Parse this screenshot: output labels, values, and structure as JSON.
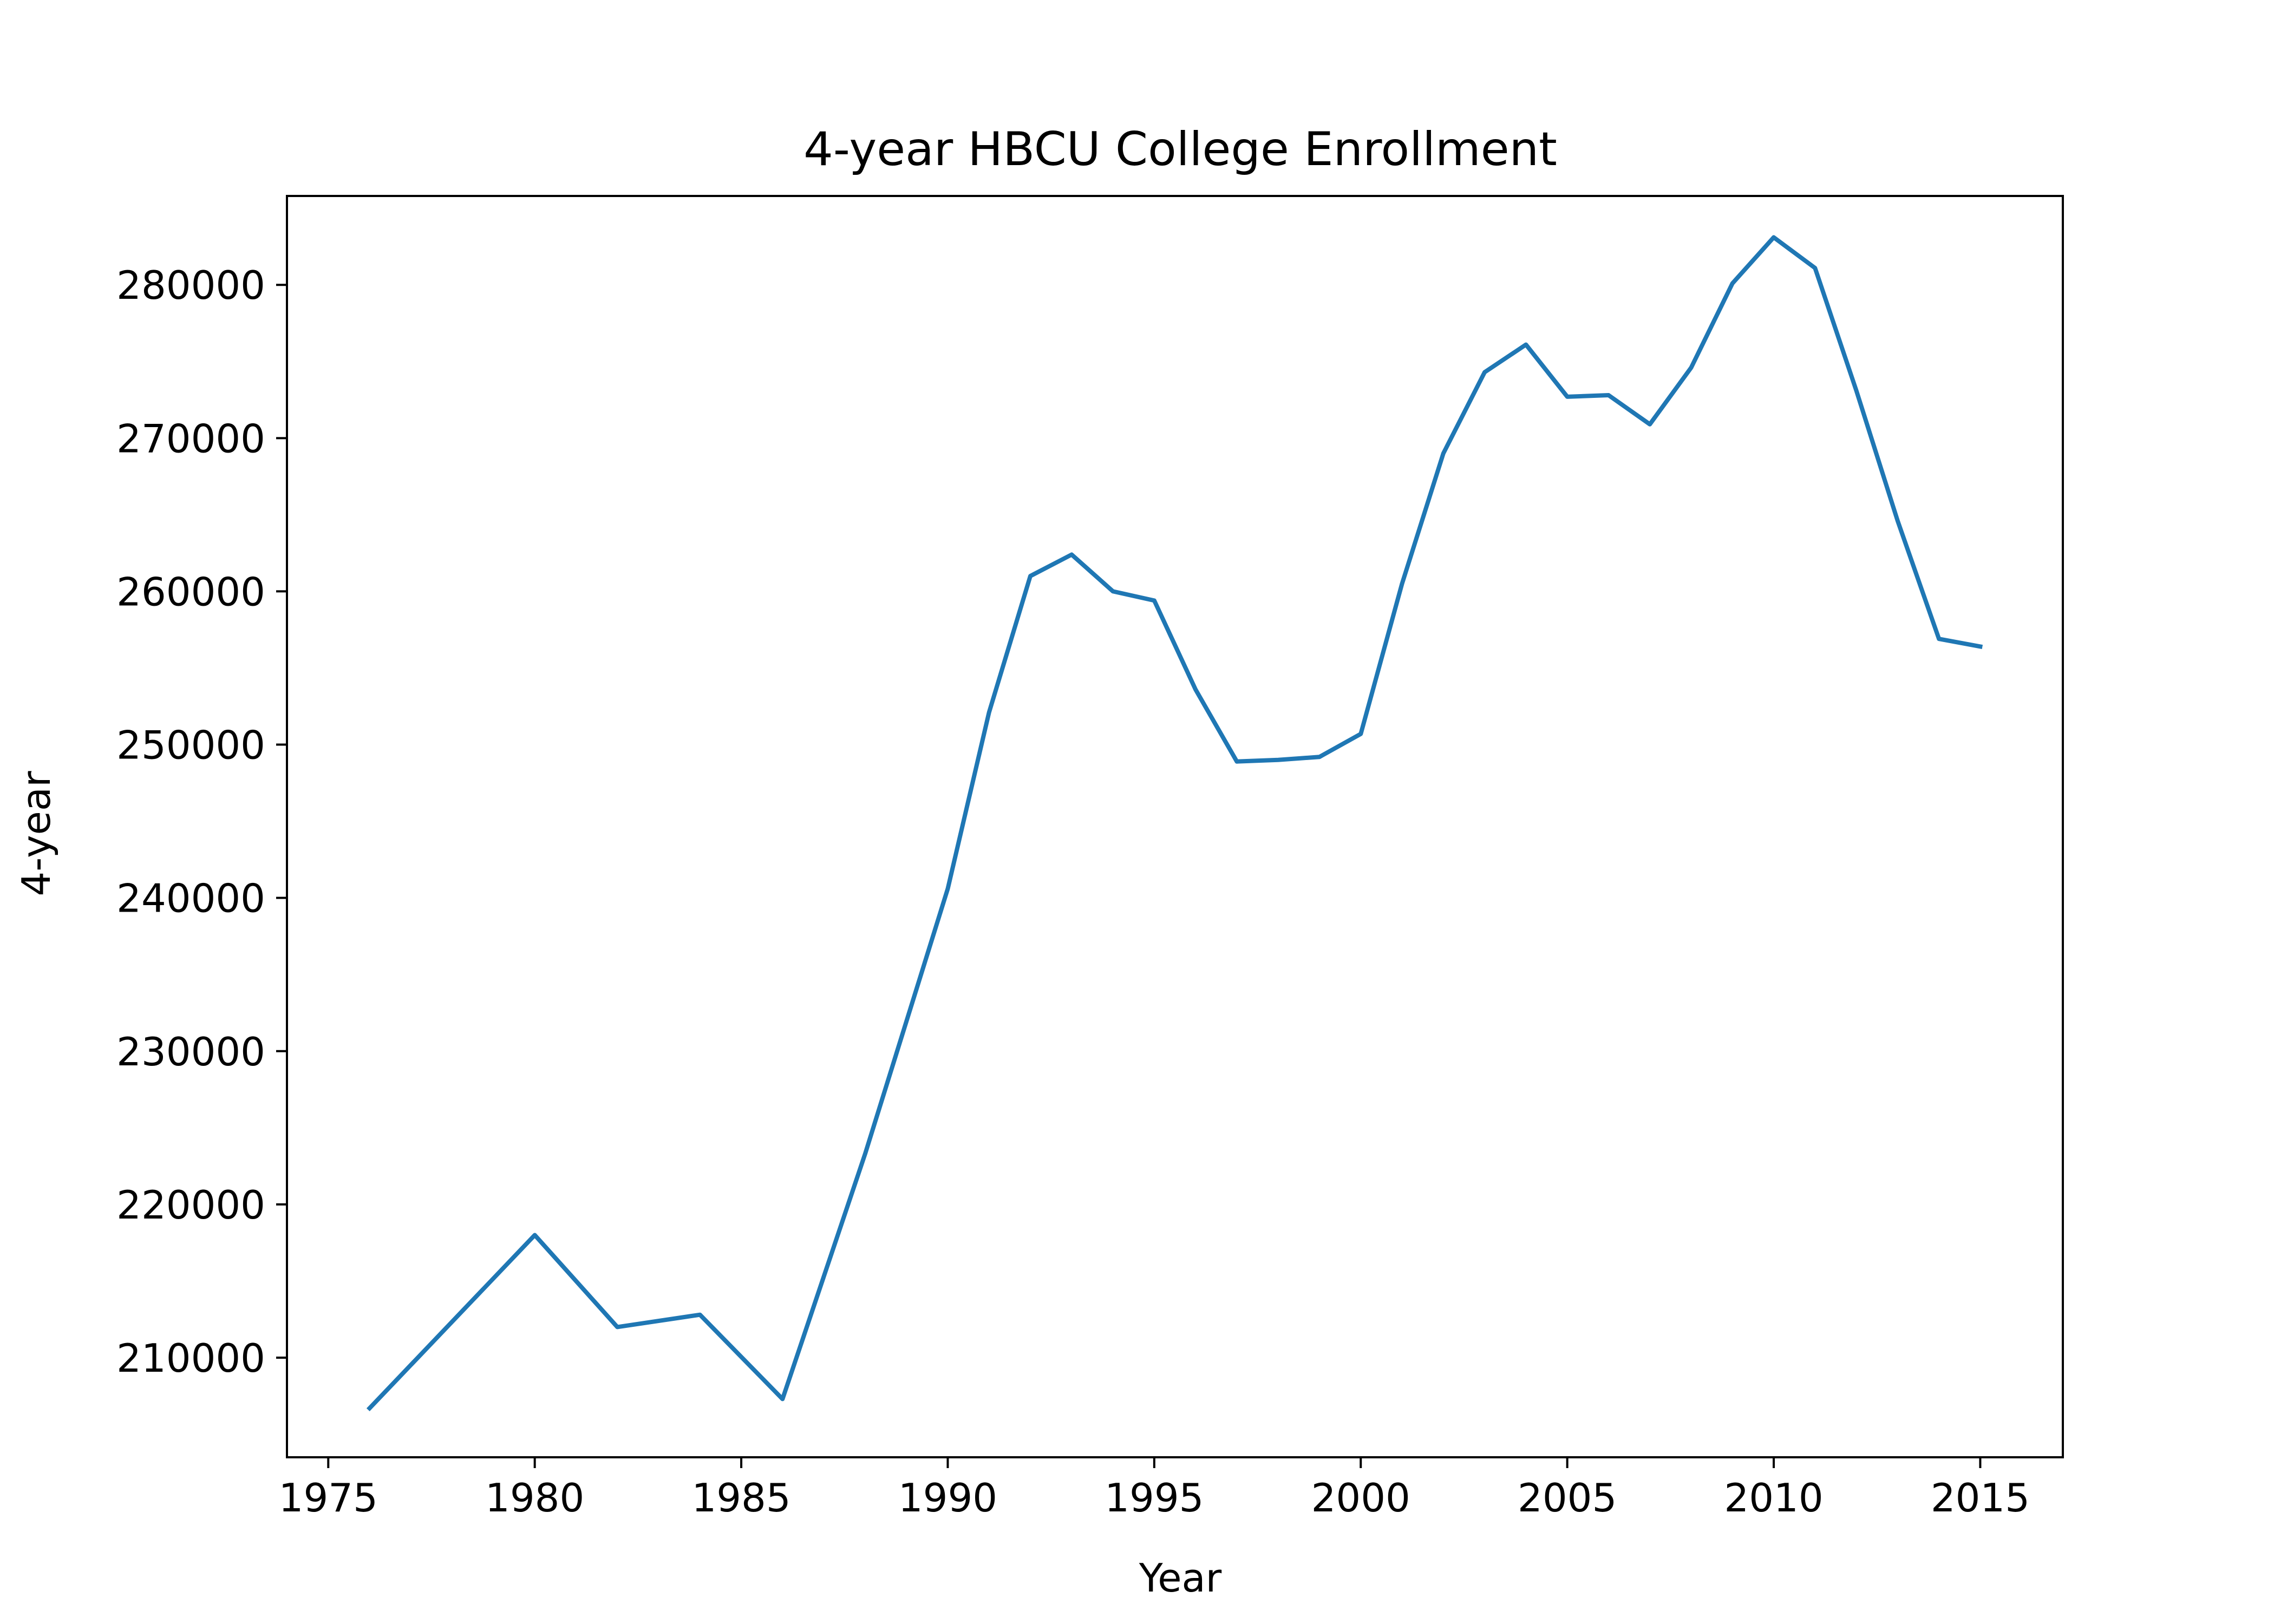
{
  "chart_data": {
    "type": "line",
    "title": "4-year HBCU College Enrollment",
    "xlabel": "Year",
    "ylabel": "4-year",
    "xlim": [
      1974,
      2017
    ],
    "ylim": [
      203500,
      285800
    ],
    "grid": false,
    "x_ticks": [
      1975,
      1980,
      1985,
      1990,
      1995,
      2000,
      2005,
      2010,
      2015
    ],
    "y_ticks": [
      210000,
      220000,
      230000,
      240000,
      250000,
      260000,
      270000,
      280000
    ],
    "x_tick_labels": [
      "1975",
      "1980",
      "1985",
      "1990",
      "1995",
      "2000",
      "2005",
      "2010",
      "2015"
    ],
    "y_tick_labels": [
      "210000",
      "220000",
      "230000",
      "240000",
      "250000",
      "260000",
      "270000",
      "280000"
    ],
    "series": [
      {
        "color": "#1f77b4",
        "x": [
          1976,
          1980,
          1982,
          1984,
          1986,
          1988,
          1990,
          1991,
          1992,
          1993,
          1994,
          1995,
          1996,
          1997,
          1998,
          1999,
          2000,
          2001,
          2002,
          2003,
          2004,
          2005,
          2006,
          2007,
          2008,
          2009,
          2010,
          2011,
          2012,
          2013,
          2014,
          2015
        ],
        "values": [
          206700,
          218000,
          212000,
          212800,
          207300,
          223300,
          240600,
          252100,
          261000,
          262400,
          260000,
          259400,
          253600,
          248900,
          249000,
          249200,
          250700,
          260500,
          269000,
          274300,
          276100,
          272700,
          272800,
          270900,
          274600,
          280100,
          283100,
          281100,
          273100,
          264600,
          256900,
          256400
        ]
      }
    ]
  }
}
